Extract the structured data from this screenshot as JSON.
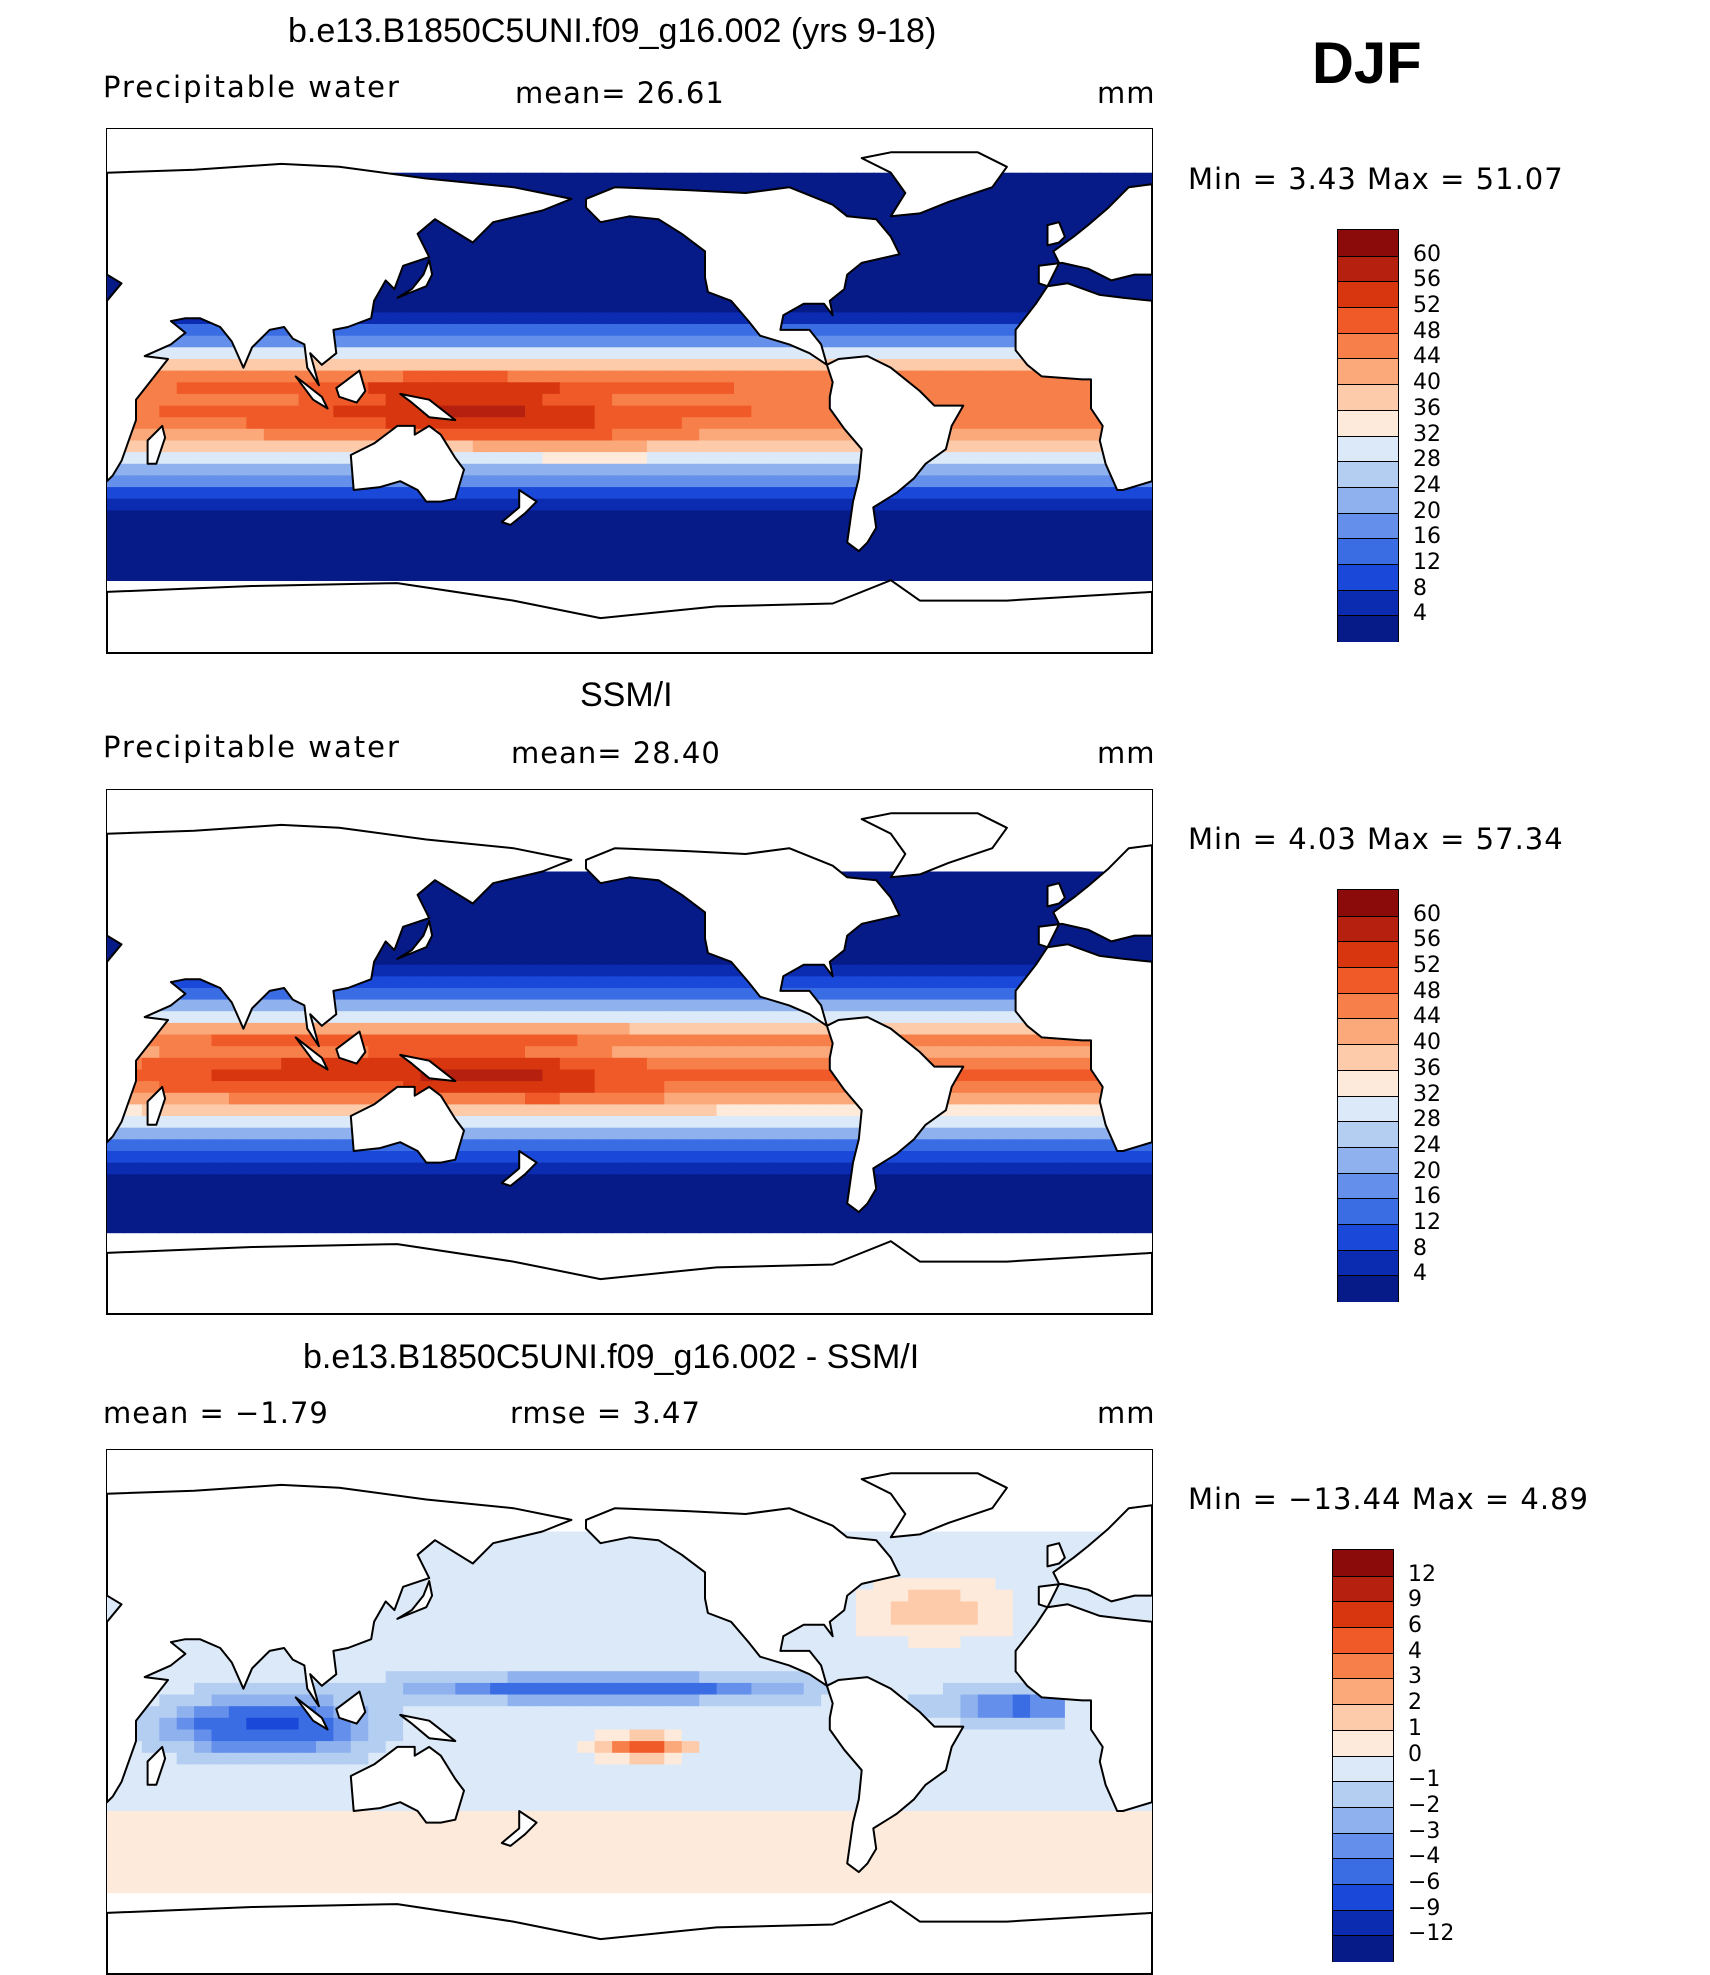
{
  "season": "DJF",
  "panels": [
    {
      "id": "model",
      "title": "b.e13.B1850C5UNI.f09_g16.002 (yrs 9-18)",
      "left_label": "Precipitable  water",
      "mid_label": "mean=   26.61",
      "units": "mm",
      "minmax": "Min  =     3.43  Max  =     51.07",
      "colorbar_labels": [
        "60",
        "56",
        "52",
        "48",
        "44",
        "40",
        "36",
        "32",
        "28",
        "24",
        "20",
        "16",
        "12",
        "8",
        "4"
      ],
      "colorbar_colors": [
        "#8b0a0a",
        "#b5200f",
        "#d8360f",
        "#f05a28",
        "#f7804a",
        "#fba97a",
        "#fdcbaa",
        "#fdeadb",
        "#dce9f8",
        "#b4cef2",
        "#8fb2ee",
        "#648fea",
        "#3a6ce4",
        "#1a48d8",
        "#0b2bb0",
        "#061a88"
      ],
      "map_kind": "pw_model"
    },
    {
      "id": "obs",
      "title": "SSM/I",
      "left_label": "Precipitable  water",
      "mid_label": "mean=   28.40",
      "units": "mm",
      "minmax": "Min  =     4.03  Max  =     57.34",
      "colorbar_labels": [
        "60",
        "56",
        "52",
        "48",
        "44",
        "40",
        "36",
        "32",
        "28",
        "24",
        "20",
        "16",
        "12",
        "8",
        "4"
      ],
      "colorbar_colors": [
        "#8b0a0a",
        "#b5200f",
        "#d8360f",
        "#f05a28",
        "#f7804a",
        "#fba97a",
        "#fdcbaa",
        "#fdeadb",
        "#dce9f8",
        "#b4cef2",
        "#8fb2ee",
        "#648fea",
        "#3a6ce4",
        "#1a48d8",
        "#0b2bb0",
        "#061a88"
      ],
      "map_kind": "pw_obs"
    },
    {
      "id": "diff",
      "title": "b.e13.B1850C5UNI.f09_g16.002 - SSM/I",
      "left_label": "mean  =    −1.79",
      "mid_label": "rmse  =      3.47",
      "units": "mm",
      "minmax": "Min  =  −13.44  Max  =      4.89",
      "colorbar_labels": [
        "12",
        "9",
        "6",
        "4",
        "3",
        "2",
        "1",
        "0",
        "−1",
        "−2",
        "−3",
        "−4",
        "−6",
        "−9",
        "−12"
      ],
      "colorbar_colors": [
        "#8b0a0a",
        "#b5200f",
        "#d8360f",
        "#f05a28",
        "#f7804a",
        "#fba97a",
        "#fdcbaa",
        "#fdeadb",
        "#dce9f8",
        "#b4cef2",
        "#8fb2ee",
        "#648fea",
        "#3a6ce4",
        "#1a48d8",
        "#0b2bb0",
        "#061a88"
      ],
      "map_kind": "pw_diff"
    }
  ]
}
